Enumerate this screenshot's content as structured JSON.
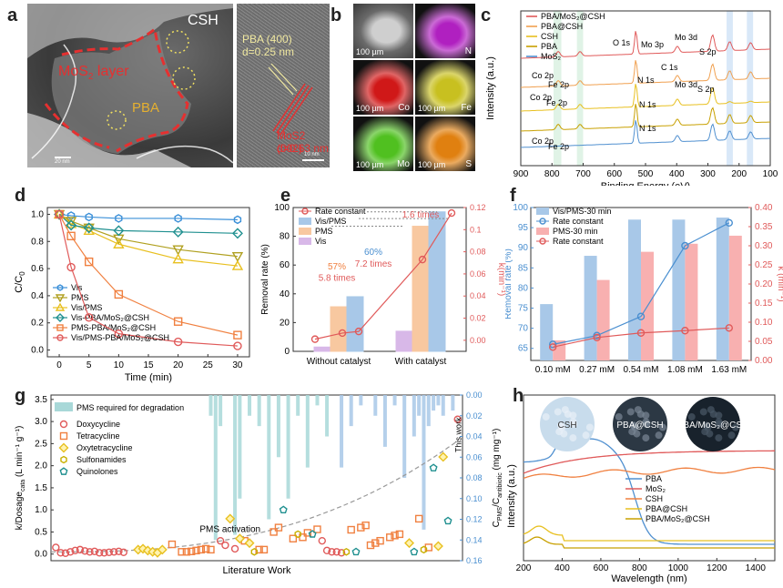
{
  "panel_letters": [
    "a",
    "b",
    "c",
    "d",
    "e",
    "f",
    "g",
    "h"
  ],
  "panel_a": {
    "csh_label": "CSH",
    "mos2_label": "MoS",
    "mos2_sub": "2",
    "mos2_tail": " layer",
    "pba_label": "PBA",
    "scale_left": "20 nm",
    "pba_plane": "PBA (400)",
    "pba_d": "d=0.25 nm",
    "mos2_plane": "MoS2 (002)",
    "mos2_d": "d=0.63 nm",
    "scale_right": "10 nm"
  },
  "panel_b": {
    "tiles": [
      {
        "element": "",
        "scale": "100 µm",
        "color": "#9a9a9a"
      },
      {
        "element": "N",
        "scale": "",
        "color": "#b020c0"
      },
      {
        "element": "Co",
        "scale": "100 µm",
        "color": "#d01818"
      },
      {
        "element": "Fe",
        "scale": "100 µm",
        "color": "#c8c020"
      },
      {
        "element": "Mo",
        "scale": "100 µm",
        "color": "#50c020"
      },
      {
        "element": "S",
        "scale": "100 µm",
        "color": "#e08010"
      }
    ]
  },
  "chart_data": [
    {
      "panel": "c",
      "type": "line",
      "xlabel": "Binding Energy (eV)",
      "ylabel": "Intensity (a.u.)",
      "xlim": [
        900,
        100
      ],
      "xticks": [
        900,
        800,
        700,
        600,
        500,
        400,
        300,
        200,
        100
      ],
      "legend": [
        "PBA/MoS₂@CSH",
        "PBA@CSH",
        "CSH",
        "PBA",
        "MoS₂"
      ],
      "legend_colors": [
        "#e05a5a",
        "#f0a050",
        "#e8c020",
        "#c8a000",
        "#5090d0"
      ],
      "annotations": [
        "O 1s",
        "Mo 3p",
        "Mo 3d",
        "S 2p",
        "C 1s",
        "N 1s",
        "Co 2p",
        "Fe 2p",
        "Mo 3d",
        "S 2p",
        "Co 2p",
        "Fe 2p",
        "N 1s",
        "N 1s",
        "Co 2p",
        "Fe 2p"
      ]
    },
    {
      "panel": "d",
      "type": "line",
      "xlabel": "Time (min)",
      "ylabel": "C/C",
      "ylabel_sub": "0",
      "x": [
        0,
        2,
        5,
        10,
        20,
        30
      ],
      "xticks": [
        0,
        5,
        10,
        15,
        20,
        25,
        30
      ],
      "yticks": [
        0.0,
        0.2,
        0.4,
        0.6,
        0.8,
        1.0
      ],
      "ylim": [
        -0.05,
        1.05
      ],
      "series": [
        {
          "name": "Vis",
          "color": "#3a8fd8",
          "marker": "hex",
          "values": [
            1.0,
            0.99,
            0.98,
            0.97,
            0.97,
            0.96
          ]
        },
        {
          "name": "PMS",
          "color": "#b0a020",
          "marker": "tri-down",
          "values": [
            1.0,
            0.95,
            0.9,
            0.82,
            0.74,
            0.69
          ]
        },
        {
          "name": "Vis/PMS",
          "color": "#e8c020",
          "marker": "tri-up",
          "values": [
            1.0,
            0.93,
            0.88,
            0.78,
            0.67,
            0.62
          ]
        },
        {
          "name": "Vis-PBA/MoS₂@CSH",
          "color": "#209090",
          "marker": "diamond",
          "values": [
            1.0,
            0.92,
            0.9,
            0.88,
            0.87,
            0.86
          ]
        },
        {
          "name": "PMS-PBA/MoS₂@CSH",
          "color": "#f08040",
          "marker": "square",
          "values": [
            1.0,
            0.84,
            0.65,
            0.41,
            0.21,
            0.11
          ]
        },
        {
          "name": "Vis/PMS-PBA/MoS₂@CSH",
          "color": "#e05a5a",
          "marker": "circle",
          "values": [
            1.0,
            0.61,
            0.24,
            0.12,
            0.06,
            0.03
          ]
        }
      ]
    },
    {
      "panel": "e",
      "type": "bar",
      "categories": [
        "Without catalyst",
        "With catalyst"
      ],
      "ylabel": "Removal rate (%)",
      "ylabel2": "k(min⁻¹)",
      "ylim": [
        0,
        100
      ],
      "ylim2": [
        -0.01,
        0.12
      ],
      "yticks": [
        0,
        20,
        40,
        60,
        80,
        100
      ],
      "yticks2": [
        0.0,
        0.02,
        0.04,
        0.06,
        0.08,
        0.1,
        0.12
      ],
      "series": [
        {
          "name": "Vis/PMS",
          "color": "#a8c8e8",
          "values": [
            38,
            97
          ]
        },
        {
          "name": "PMS",
          "color": "#f8c8a0",
          "values": [
            31,
            87
          ]
        },
        {
          "name": "Vis",
          "color": "#d8b8e8",
          "values": [
            3,
            14
          ]
        }
      ],
      "rate_constant": {
        "name": "Rate constant",
        "color": "#e05a5a",
        "values": [
          0.001,
          0.0065,
          0.008,
          0.073,
          0.115
        ]
      },
      "annotations": [
        "57%",
        "5.8 times",
        "60%",
        "7.2 times",
        "1.6 times"
      ]
    },
    {
      "panel": "f",
      "type": "bar",
      "categories": [
        "0.10 mM",
        "0.27 mM",
        "0.54 mM",
        "1.08 mM",
        "1.63 mM"
      ],
      "ylabel": "Removal rate (%)",
      "ylabel2": "k (min⁻¹)",
      "ylim": [
        62,
        100
      ],
      "yticks": [
        65,
        70,
        75,
        80,
        85,
        90,
        95,
        100
      ],
      "ylim2": [
        0,
        0.4
      ],
      "yticks2": [
        0.0,
        0.05,
        0.1,
        0.15,
        0.2,
        0.25,
        0.3,
        0.35,
        0.4
      ],
      "series": [
        {
          "name": "Vis/PMS-30 min",
          "color": "#a8c8e8",
          "values": [
            76,
            88,
            97,
            97,
            97.5
          ]
        },
        {
          "name": "PMS-30 min",
          "color": "#f8b0b0",
          "values": [
            67,
            82,
            89,
            91,
            93
          ]
        }
      ],
      "rate_constants": [
        {
          "name": "Rate constant",
          "color": "#4a8fd0",
          "values": [
            0.042,
            0.065,
            0.115,
            0.3,
            0.36
          ]
        },
        {
          "name": "Rate constant",
          "color": "#e05a5a",
          "values": [
            0.035,
            0.06,
            0.072,
            0.078,
            0.085
          ]
        }
      ]
    },
    {
      "panel": "g",
      "type": "scatter",
      "xlabel": "Literature Work",
      "ylabel": "k/Dosage",
      "ylabel_sub": "cata",
      "ylabel_tail": " (L min⁻¹ g⁻¹)",
      "ylabel2": "C",
      "ylabel2_sub": "PMS",
      "ylabel2_mid": "/C",
      "ylabel2_sub2": "antibiotic",
      "ylabel2_tail": " (mg mg⁻¹)",
      "ylim": [
        -0.15,
        3.6
      ],
      "yticks": [
        0.0,
        0.5,
        1.0,
        1.5,
        2.0,
        2.5,
        3.0,
        3.5
      ],
      "ylim2": [
        0,
        0.16
      ],
      "yticks2": [
        0.0,
        0.02,
        0.04,
        0.06,
        0.08,
        0.1,
        0.12,
        0.14,
        0.16
      ],
      "legend": [
        "PMS required for degradation",
        "Doxycycline",
        "Tetracycline",
        "Oxytetracycline",
        "Sulfonamides",
        "Quinolones"
      ],
      "annotations": [
        "PMS activation",
        "This work"
      ],
      "series": [
        {
          "name": "Doxycycline",
          "color": "#e05a5a",
          "marker": "circle",
          "x": [
            1,
            2,
            3,
            4,
            5,
            6,
            7,
            8,
            9,
            10,
            11,
            12,
            13,
            14,
            15,
            35,
            36,
            38,
            56,
            57,
            58,
            59,
            60,
            84
          ],
          "y": [
            0.15,
            0.03,
            0.02,
            0.05,
            0.08,
            0.1,
            0.07,
            0.05,
            0.06,
            0.03,
            0.03,
            0.04,
            0.05,
            0.06,
            0.04,
            0.3,
            0.2,
            0.12,
            0.3,
            0.08,
            0.05,
            0.05,
            0.03,
            3.05
          ]
        },
        {
          "name": "Tetracycline",
          "color": "#f08040",
          "marker": "square",
          "x": [
            25,
            27,
            28,
            29,
            30,
            31,
            32,
            33,
            40,
            43,
            44,
            46,
            47,
            50,
            52,
            53,
            55,
            62,
            64,
            65,
            66,
            67,
            68,
            70,
            71,
            72,
            76,
            78
          ],
          "y": [
            0.22,
            0.05,
            0.05,
            0.06,
            0.08,
            0.1,
            0.12,
            0.1,
            0.3,
            0.1,
            0.1,
            0.5,
            0.6,
            0.35,
            0.38,
            0.48,
            0.56,
            0.55,
            0.6,
            0.65,
            0.2,
            0.25,
            0.3,
            0.38,
            0.42,
            0.45,
            0.8,
            0.15
          ]
        },
        {
          "name": "Oxytetracycline",
          "color": "#e8c020",
          "marker": "diamond",
          "x": [
            18,
            19,
            20,
            21,
            22,
            23,
            37,
            39,
            41,
            74,
            80,
            81
          ],
          "y": [
            0.1,
            0.12,
            0.08,
            0.05,
            0.03,
            0.1,
            0.8,
            0.35,
            0.25,
            0.25,
            0.18,
            2.2
          ]
        },
        {
          "name": "Sulfonamides",
          "color": "#c8b000",
          "marker": "hex",
          "x": [
            42,
            51,
            61,
            77
          ],
          "y": [
            0.05,
            0.45,
            0.05,
            0.1
          ]
        },
        {
          "name": "Quinolones",
          "color": "#209090",
          "marker": "pentagon",
          "x": [
            48,
            54,
            63,
            75,
            79,
            82
          ],
          "y": [
            1.0,
            0.45,
            0.05,
            0.05,
            1.95,
            0.75
          ]
        }
      ],
      "pms_bars": [
        {
          "x": 33,
          "value": 0.02
        },
        {
          "x": 34,
          "value": 0.14
        },
        {
          "x": 35,
          "value": 0.03
        },
        {
          "x": 38,
          "value": 0.135
        },
        {
          "x": 39,
          "value": 0.1
        },
        {
          "x": 41,
          "value": 0.02
        },
        {
          "x": 43,
          "value": 0.03
        },
        {
          "x": 45,
          "value": 0.12
        },
        {
          "x": 47,
          "value": 0.06
        },
        {
          "x": 49,
          "value": 0.1
        },
        {
          "x": 51,
          "value": 0.02
        },
        {
          "x": 53,
          "value": 0.07
        },
        {
          "x": 55,
          "value": 0.01
        },
        {
          "x": 57,
          "value": 0.04
        },
        {
          "x": 60,
          "value": 0.07
        },
        {
          "x": 62,
          "value": 0.03
        },
        {
          "x": 64,
          "value": 0.01
        },
        {
          "x": 67,
          "value": 0.02
        },
        {
          "x": 69,
          "value": 0.05
        },
        {
          "x": 71,
          "value": 0.01
        },
        {
          "x": 73,
          "value": 0.08
        },
        {
          "x": 75,
          "value": 0.04
        },
        {
          "x": 76,
          "value": 0.02
        },
        {
          "x": 77,
          "value": 0.13
        },
        {
          "x": 78,
          "value": 0.03
        },
        {
          "x": 79,
          "value": 0.015
        },
        {
          "x": 80,
          "value": 0.01
        },
        {
          "x": 81,
          "value": 0.02
        },
        {
          "x": 83,
          "value": 0.015
        }
      ]
    },
    {
      "panel": "h",
      "type": "line",
      "xlabel": "Wavelength (nm)",
      "ylabel": "Intensity (a.u.)",
      "xlim": [
        200,
        1500
      ],
      "xticks": [
        200,
        400,
        600,
        800,
        1000,
        1200,
        1400
      ],
      "legend": [
        "PBA",
        "MoS₂",
        "CSH",
        "PBA@CSH",
        "PBA/MoS₂@CSH"
      ],
      "legend_colors": [
        "#5090d0",
        "#e05a5a",
        "#f08040",
        "#e8c020",
        "#c8a000"
      ],
      "inset_labels": [
        "CSH",
        "PBA@CSH",
        "PBA/MoS₂@CSH"
      ]
    }
  ]
}
